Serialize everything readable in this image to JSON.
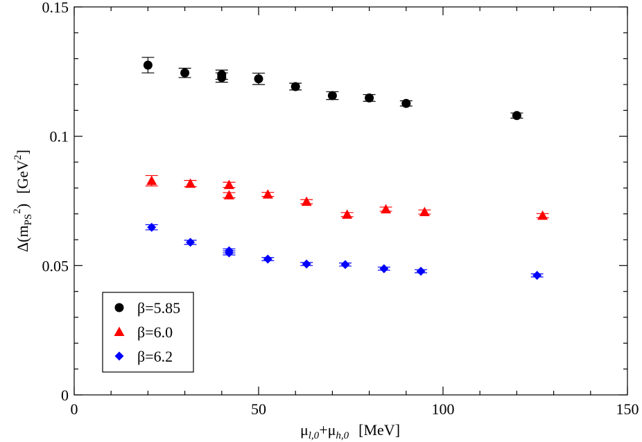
{
  "chart_data": {
    "type": "scatter",
    "title": "",
    "xlabel": {
      "mu1": "μ",
      "sub1": "l,0",
      "plus": "+",
      "mu2": "μ",
      "sub2": "h,0",
      "unit": "[MeV]"
    },
    "ylabel": {
      "prefix": "Δ(m",
      "sub": "PS",
      "sup": "2",
      "suffix": ")",
      "unit_open": "[GeV",
      "unit_sup": "2",
      "unit_close": "]"
    },
    "xlim": [
      0,
      150
    ],
    "ylim": [
      0,
      0.15
    ],
    "x_ticks": [
      0,
      50,
      100,
      150
    ],
    "x_tick_labels": [
      "0",
      "50",
      "100",
      "150"
    ],
    "y_ticks": [
      0,
      0.05,
      0.1,
      0.15
    ],
    "y_tick_labels": [
      "0",
      "0.05",
      "0.1",
      "0.15"
    ],
    "grid": false,
    "legend_position": "bottom-left",
    "series": [
      {
        "name": "β=5.85",
        "color": "#000000",
        "marker": "circle",
        "points": [
          {
            "x": 20,
            "y": 0.1275,
            "err": 0.003
          },
          {
            "x": 30,
            "y": 0.1245,
            "err": 0.0018
          },
          {
            "x": 40,
            "y": 0.1238,
            "err": 0.0018
          },
          {
            "x": 40,
            "y": 0.1227,
            "err": 0.0018
          },
          {
            "x": 50,
            "y": 0.1222,
            "err": 0.0022
          },
          {
            "x": 60,
            "y": 0.1192,
            "err": 0.0013
          },
          {
            "x": 70,
            "y": 0.1157,
            "err": 0.0015
          },
          {
            "x": 80,
            "y": 0.1148,
            "err": 0.0013
          },
          {
            "x": 90,
            "y": 0.1127,
            "err": 0.001
          },
          {
            "x": 120,
            "y": 0.108,
            "err": 0.001
          }
        ]
      },
      {
        "name": "β=6.0",
        "color": "#ff0000",
        "marker": "triangle",
        "points": [
          {
            "x": 21,
            "y": 0.0828,
            "err": 0.002
          },
          {
            "x": 31.5,
            "y": 0.0817,
            "err": 0.0012
          },
          {
            "x": 42,
            "y": 0.0812,
            "err": 0.001
          },
          {
            "x": 42,
            "y": 0.0772,
            "err": 0.001
          },
          {
            "x": 52.5,
            "y": 0.0775,
            "err": 0.0008
          },
          {
            "x": 63,
            "y": 0.0747,
            "err": 0.0008
          },
          {
            "x": 74,
            "y": 0.0697,
            "err": 0.0008
          },
          {
            "x": 84.5,
            "y": 0.0718,
            "err": 0.0008
          },
          {
            "x": 95,
            "y": 0.0707,
            "err": 0.0008
          },
          {
            "x": 127,
            "y": 0.0693,
            "err": 0.0008
          }
        ]
      },
      {
        "name": "β=6.2",
        "color": "#0000ff",
        "marker": "diamond",
        "points": [
          {
            "x": 21,
            "y": 0.0648,
            "err": 0.001
          },
          {
            "x": 31.5,
            "y": 0.059,
            "err": 0.0008
          },
          {
            "x": 42,
            "y": 0.0557,
            "err": 0.0008
          },
          {
            "x": 42,
            "y": 0.0549,
            "err": 0.0008
          },
          {
            "x": 52.5,
            "y": 0.0525,
            "err": 0.0006
          },
          {
            "x": 63,
            "y": 0.0506,
            "err": 0.0006
          },
          {
            "x": 73.5,
            "y": 0.0504,
            "err": 0.0006
          },
          {
            "x": 84,
            "y": 0.0488,
            "err": 0.0006
          },
          {
            "x": 94,
            "y": 0.0478,
            "err": 0.0006
          },
          {
            "x": 125.5,
            "y": 0.0462,
            "err": 0.0006
          }
        ]
      }
    ]
  }
}
